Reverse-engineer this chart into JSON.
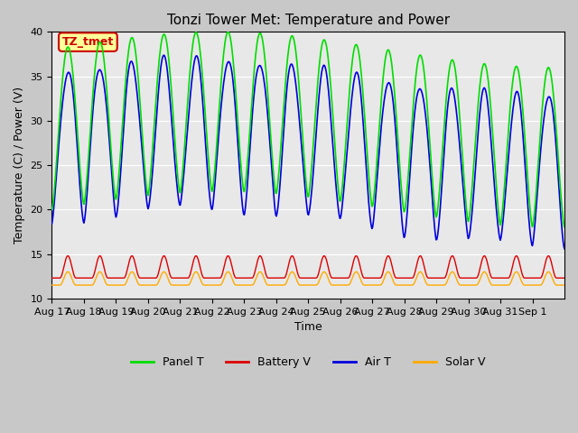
{
  "title": "Tonzi Tower Met: Temperature and Power",
  "xlabel": "Time",
  "ylabel": "Temperature (C) / Power (V)",
  "ylim": [
    10,
    40
  ],
  "yticks": [
    10,
    15,
    20,
    25,
    30,
    35,
    40
  ],
  "colors": {
    "panel_t": "#00dd00",
    "battery_v": "#dd0000",
    "air_t": "#0000dd",
    "solar_v": "#ffaa00"
  },
  "legend_labels": [
    "Panel T",
    "Battery V",
    "Air T",
    "Solar V"
  ],
  "annotation_text": "TZ_tmet",
  "annotation_color": "#cc0000",
  "annotation_bg": "#ffff99",
  "fig_bg": "#c8c8c8",
  "plot_bg": "#e8e8e8",
  "x_tick_labels": [
    "Aug 17",
    "Aug 18",
    "Aug 19",
    "Aug 20",
    "Aug 21",
    "Aug 22",
    "Aug 23",
    "Aug 24",
    "Aug 25",
    "Aug 26",
    "Aug 27",
    "Aug 28",
    "Aug 29",
    "Aug 30",
    "Aug 31",
    "Sep 1"
  ],
  "n_days": 16
}
